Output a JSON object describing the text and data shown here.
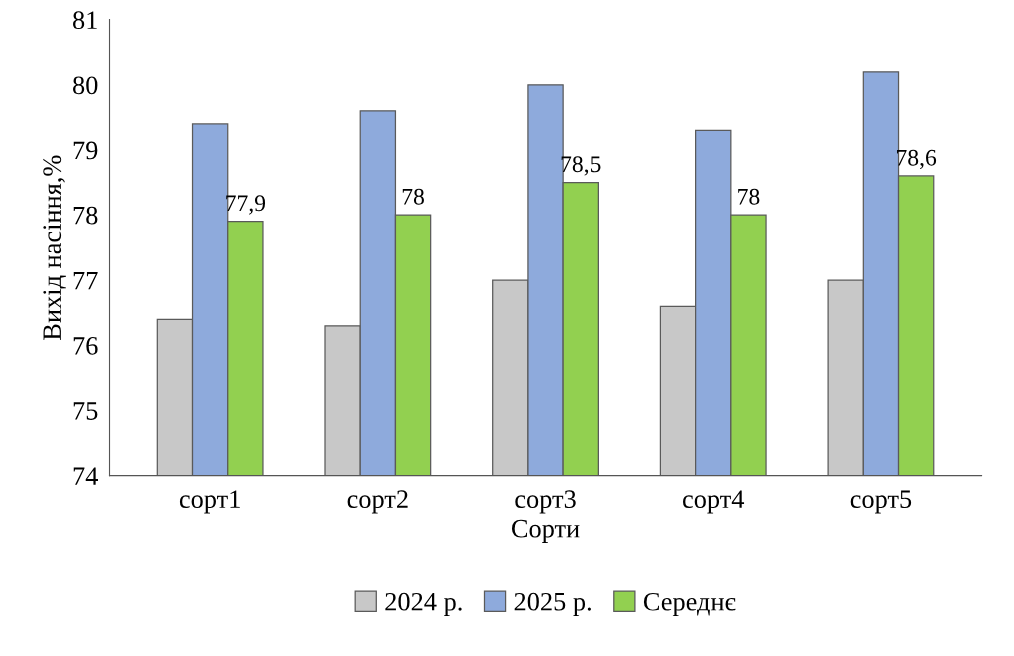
{
  "chart_data": {
    "type": "bar",
    "xlabel": "Сорти",
    "ylabel": "Вихід насіння,%",
    "categories": [
      "сорт1",
      "сорт2",
      "сорт3",
      "сорт4",
      "сорт5"
    ],
    "ylim": [
      74,
      81
    ],
    "yticks": [
      74,
      75,
      76,
      77,
      78,
      79,
      80,
      81
    ],
    "grid": false,
    "legend": "bottom",
    "series": [
      {
        "name": "2024 р.",
        "color": "#c8c8c8",
        "values": [
          76.4,
          76.3,
          77.0,
          76.6,
          77.0
        ]
      },
      {
        "name": "2025 р.",
        "color": "#8eaadc",
        "values": [
          79.4,
          79.6,
          80.0,
          79.3,
          80.2
        ]
      },
      {
        "name": "Середнє",
        "color": "#92d050",
        "values": [
          77.9,
          78.0,
          78.5,
          78.0,
          78.6
        ],
        "value_labels": [
          "77,9",
          "78",
          "78,5",
          "78",
          "78,6"
        ]
      }
    ]
  }
}
